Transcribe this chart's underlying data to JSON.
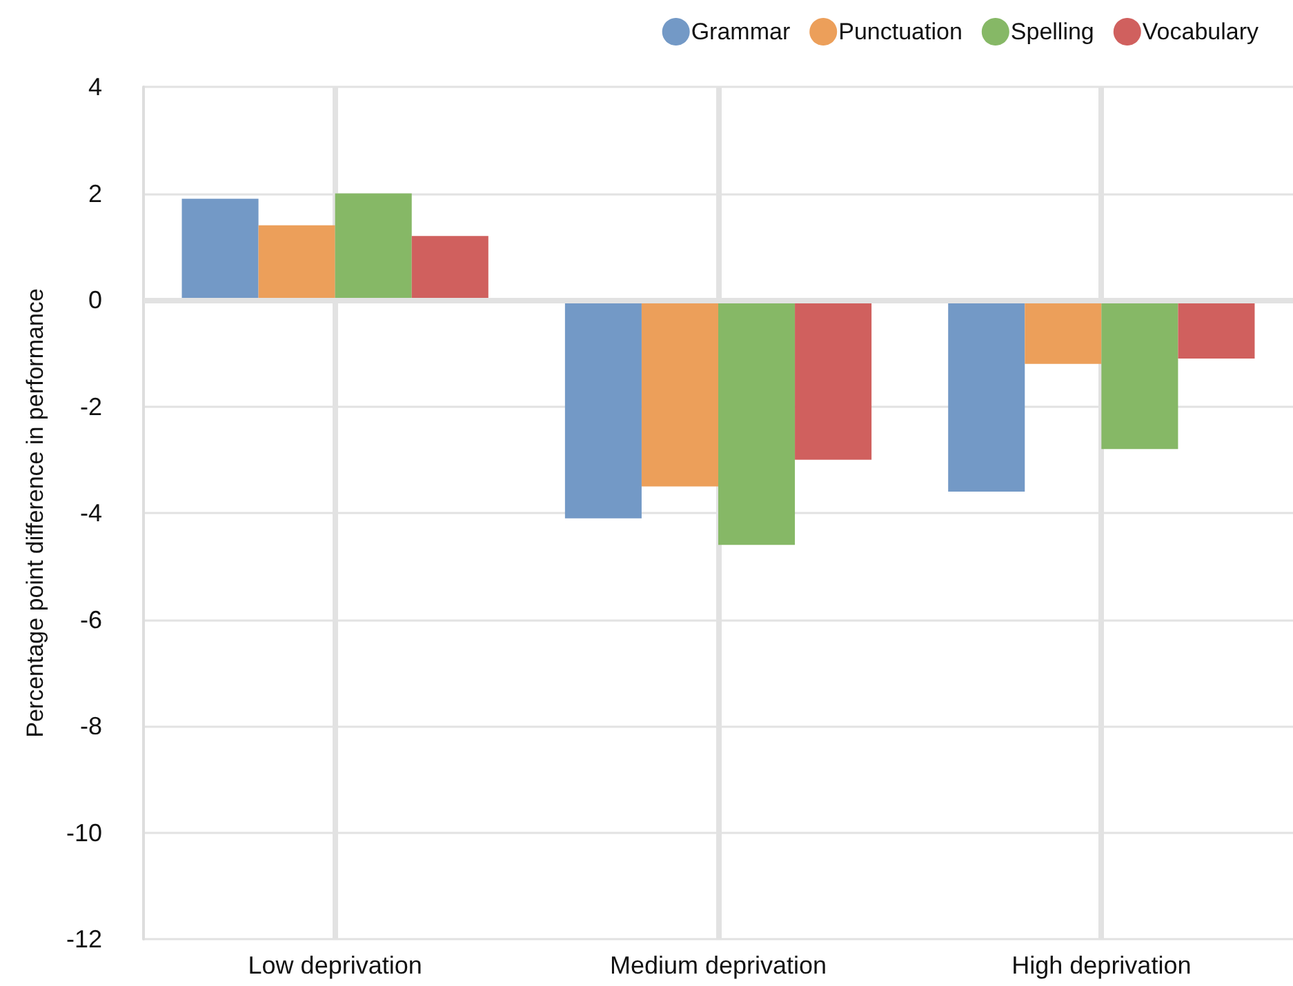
{
  "chart_data": {
    "type": "bar",
    "ylabel": "Percentage point difference in performance",
    "categories": [
      "Low deprivation",
      "Medium deprivation",
      "High deprivation"
    ],
    "series": [
      {
        "name": "Grammar",
        "color": "#7399c6",
        "values": [
          1.9,
          -4.1,
          -3.6
        ]
      },
      {
        "name": "Punctuation",
        "color": "#ec9f5a",
        "values": [
          1.4,
          -3.5,
          -1.2
        ]
      },
      {
        "name": "Spelling",
        "color": "#86b866",
        "values": [
          2.0,
          -4.6,
          -2.8
        ]
      },
      {
        "name": "Vocabulary",
        "color": "#d0605e",
        "values": [
          1.2,
          -3.0,
          -1.1
        ]
      }
    ],
    "ylim": [
      -12,
      4
    ],
    "yticks": [
      -12,
      -10,
      -8,
      -6,
      -4,
      -2,
      0,
      2,
      4
    ],
    "grid": true,
    "legend": "top right"
  }
}
